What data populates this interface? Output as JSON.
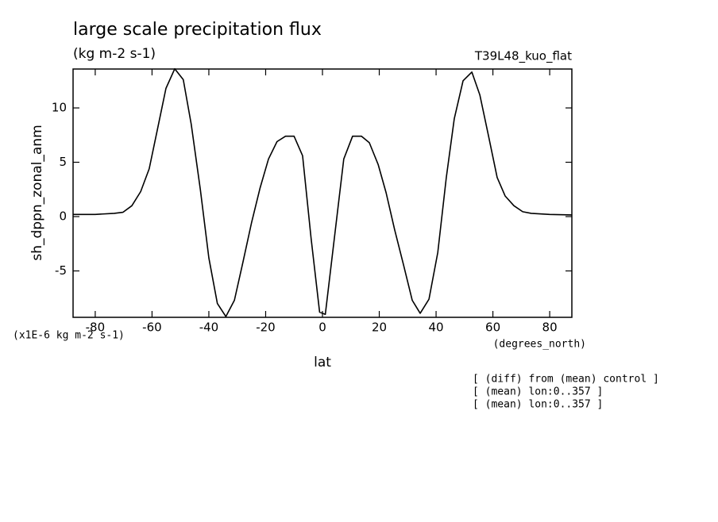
{
  "chart_data": {
    "type": "line",
    "title": "large scale precipitation flux",
    "subtitle": "(kg m-2 s-1)",
    "run_label": "T39L48_kuo_flat",
    "y_label": "sh_dppn_zonal_anm",
    "y_scale_label": "(x1E-6 kg m-2 s-1)",
    "x_label": "lat",
    "x_units": "(degrees_north)",
    "notes": [
      "[ (diff) from (mean) control ]",
      "[ (mean) lon:0..357 ]",
      "[ (mean) lon:0..357 ]"
    ],
    "x": [
      -87.8,
      -80,
      -73.3,
      -70.2,
      -67.1,
      -64,
      -61,
      -58.2,
      -55.1,
      -52,
      -49,
      -46.2,
      -43,
      -40,
      -37,
      -34,
      -31,
      -28,
      -25,
      -22,
      -19,
      -16,
      -13,
      -10,
      -7,
      -4,
      -1,
      1,
      7.5,
      10.6,
      13.7,
      16.5,
      19.6,
      22.4,
      25.4,
      28.5,
      31.6,
      34.4,
      37.5,
      40.6,
      43.6,
      46.4,
      49.5,
      52.6,
      55.4,
      58.4,
      61.5,
      64.3,
      67.4,
      70.5,
      73.5,
      80,
      87.8
    ],
    "values": [
      0.2,
      0.2,
      0.3,
      0.4,
      1.0,
      2.3,
      4.4,
      7.9,
      11.8,
      13.6,
      12.6,
      8.5,
      2.5,
      -3.8,
      -8.0,
      -9.2,
      -7.7,
      -4.2,
      -0.6,
      2.6,
      5.3,
      6.9,
      7.4,
      7.4,
      5.6,
      -2.0,
      -8.8,
      -9.0,
      5.3,
      7.4,
      7.4,
      6.8,
      4.8,
      2.2,
      -1.2,
      -4.4,
      -7.7,
      -8.9,
      -7.6,
      -3.3,
      3.6,
      9.0,
      12.5,
      13.3,
      11.2,
      7.5,
      3.6,
      1.9,
      1.0,
      0.45,
      0.3,
      0.2,
      0.15
    ],
    "color": "#000000",
    "xlim": [
      -87.8,
      87.8
    ],
    "ylim": [
      -9.27,
      13.58
    ],
    "xticks": [
      -80,
      -60,
      -40,
      -20,
      0,
      20,
      40,
      60,
      80
    ],
    "yticks": [
      -5,
      0,
      5,
      10
    ]
  }
}
